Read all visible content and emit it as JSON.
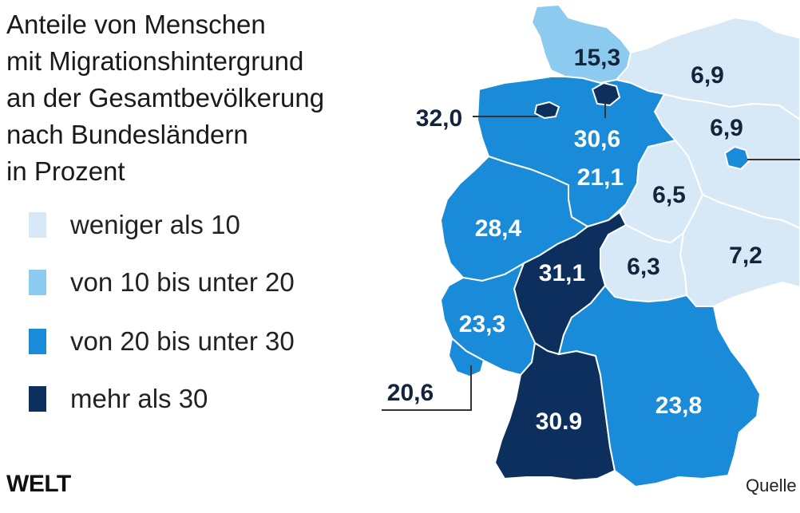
{
  "title_lines": [
    "Anteile von Menschen",
    "mit Migrationshintergrund",
    "an der Gesamtbevölkerung",
    "nach Bundesländern",
    "in Prozent"
  ],
  "legend": [
    {
      "label": "weniger als 10",
      "color": "#d7e9f7"
    },
    {
      "label": "von 10 bis unter 20",
      "color": "#8ccaef"
    },
    {
      "label": "von 20 bis unter 30",
      "color": "#1a8bd9"
    },
    {
      "label": "mehr als 30",
      "color": "#0c2f5e"
    }
  ],
  "states": [
    {
      "name": "Schleswig-Holstein",
      "value": "15,3"
    },
    {
      "name": "Mecklenburg-Vorpommern",
      "value": "6,9"
    },
    {
      "name": "Bremen",
      "value": "32,0"
    },
    {
      "name": "Hamburg",
      "value": "30,6"
    },
    {
      "name": "Brandenburg",
      "value": "6,9"
    },
    {
      "name": "Niedersachsen",
      "value": "21,1"
    },
    {
      "name": "Sachsen-Anhalt",
      "value": "6,5"
    },
    {
      "name": "Nordrhein-Westfalen",
      "value": "28,4"
    },
    {
      "name": "Sachsen",
      "value": "7,2"
    },
    {
      "name": "Hessen",
      "value": "31,1"
    },
    {
      "name": "Thüringen",
      "value": "6,3"
    },
    {
      "name": "Rheinland-Pfalz",
      "value": "23,3"
    },
    {
      "name": "Saarland",
      "value": "20,6"
    },
    {
      "name": "Baden-Württemberg",
      "value": "30.9"
    },
    {
      "name": "Bayern",
      "value": "23,8"
    }
  ],
  "logo": "WELT",
  "source": "Quelle"
}
